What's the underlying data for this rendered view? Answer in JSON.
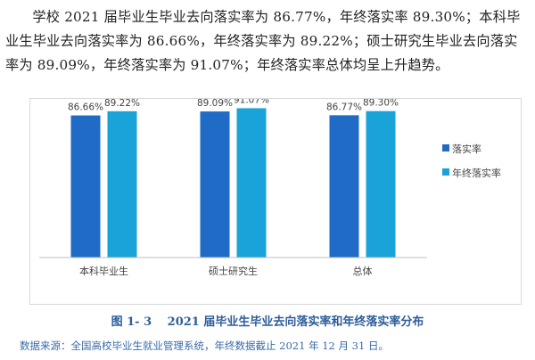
{
  "paragraph": "学校 2021 届毕业生毕业去向落实率为 86.77%，年终落实率 89.30%；本科毕业生毕业去向落实率为 86.66%，年终落实率为 89.22%；硕士研究生毕业去向落实率为 89.09%，年终落实率为 91.07%；年终落实率总体均呈上升趋势。",
  "caption": "图 1- 3　 2021 届毕业生毕业去向落实率和年终落实率分布",
  "source": "数据来源：全国高校毕业生就业管理系统，年终数据截止 2021 年 12 月 31 日。",
  "colors": {
    "series1": "#1f6bc6",
    "series2": "#1aa3d9"
  },
  "chart_data": {
    "type": "bar",
    "categories": [
      "本科毕业生",
      "硕士研究生",
      "总体"
    ],
    "series": [
      {
        "name": "落实率",
        "values": [
          86.66,
          89.09,
          86.77
        ],
        "labels": [
          "86.66%",
          "89.09%",
          "86.77%"
        ]
      },
      {
        "name": "年终落实率",
        "values": [
          89.22,
          91.07,
          89.3
        ],
        "labels": [
          "89.22%",
          "91.07%",
          "89.30%"
        ]
      }
    ],
    "title": "",
    "xlabel": "",
    "ylabel": "",
    "ylim": [
      0,
      100
    ],
    "grid": false,
    "legend": "right"
  }
}
